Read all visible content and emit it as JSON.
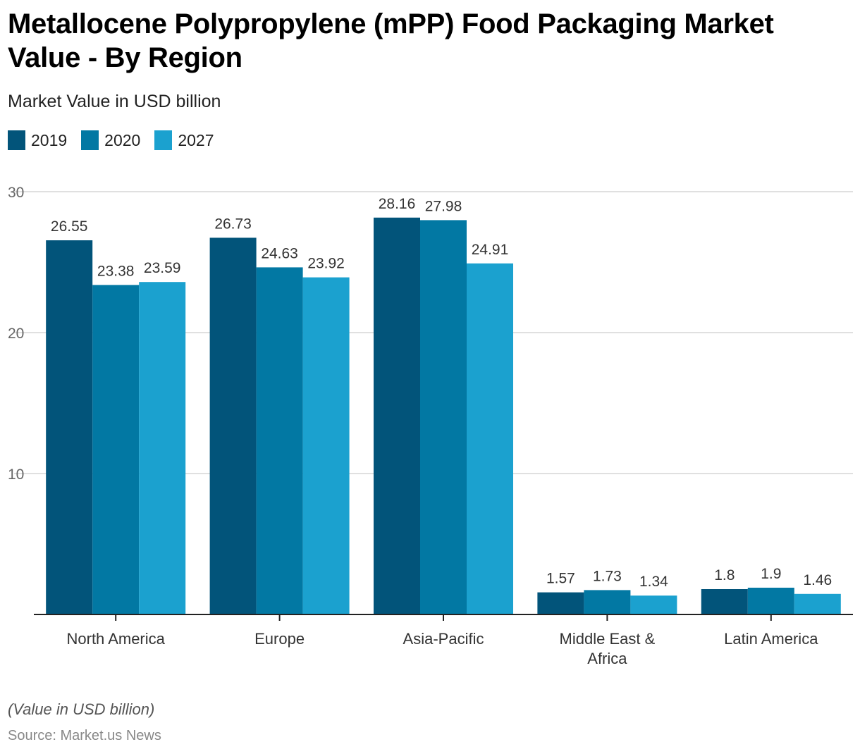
{
  "chart_data": {
    "type": "bar",
    "title": "Metallocene Polypropylene (mPP) Food Packaging Market Value - By Region",
    "subtitle": "Market Value in USD billion",
    "xlabel": "",
    "ylabel": "",
    "ylim": [
      0,
      30
    ],
    "yticks": [
      10,
      20,
      30
    ],
    "grid": true,
    "legend_position": "top-left",
    "categories": [
      "North America",
      "Europe",
      "Asia-Pacific",
      "Middle East & Africa",
      "Latin America"
    ],
    "category_lines": [
      [
        "North America"
      ],
      [
        "Europe"
      ],
      [
        "Asia-Pacific"
      ],
      [
        "Middle East &",
        "Africa"
      ],
      [
        "Latin America"
      ]
    ],
    "series": [
      {
        "name": "2019",
        "color": "#02547a",
        "values": [
          26.55,
          26.73,
          28.16,
          1.57,
          1.8
        ],
        "labels": [
          "26.55",
          "26.73",
          "28.16",
          "1.57",
          "1.8"
        ]
      },
      {
        "name": "2020",
        "color": "#0278a3",
        "values": [
          23.38,
          24.63,
          27.98,
          1.73,
          1.9
        ],
        "labels": [
          "23.38",
          "24.63",
          "27.98",
          "1.73",
          "1.9"
        ]
      },
      {
        "name": "2027",
        "color": "#1ba1cf",
        "values": [
          23.59,
          23.92,
          24.91,
          1.34,
          1.46
        ],
        "labels": [
          "23.59",
          "23.92",
          "24.91",
          "1.34",
          "1.46"
        ]
      }
    ]
  },
  "footer": {
    "note": "(Value in USD billion)",
    "source": "Source: Market.us News"
  }
}
